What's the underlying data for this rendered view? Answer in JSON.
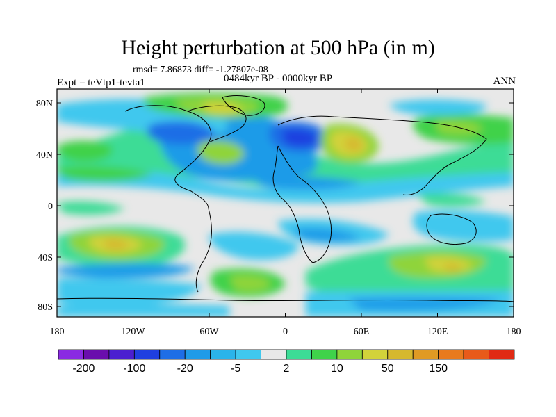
{
  "header": {
    "title": "Height perturbation at 500 hPa (in m)",
    "stats": "rmsd= 7.86873 diff= -1.27807e-08",
    "period": "0484kyr BP - 0000kyr BP",
    "experiment": "Expt = teVtp1-tevta1",
    "season": "ANN"
  },
  "axes": {
    "x_ticks": [
      "180",
      "120W",
      "60W",
      "0",
      "60E",
      "120E",
      "180"
    ],
    "y_ticks": [
      "80N",
      "40N",
      "0",
      "40S",
      "80S"
    ]
  },
  "colorbar": {
    "colors": [
      "#8a2be2",
      "#6a0dad",
      "#4b1fd0",
      "#1f3fe0",
      "#1e6ee6",
      "#1f9be8",
      "#2ab4ea",
      "#40c8ee",
      "#e8e8e8",
      "#3cdc96",
      "#3fd24a",
      "#8fd43a",
      "#d2d23a",
      "#d6b82e",
      "#e09a24",
      "#e87a1e",
      "#e85a1a",
      "#e02a14"
    ],
    "labels": [
      "-200",
      "-100",
      "-20",
      "-5",
      "2",
      "10",
      "50",
      "150"
    ],
    "label_boundaries": [
      1,
      3,
      5,
      7,
      9,
      11,
      13,
      15
    ]
  }
}
